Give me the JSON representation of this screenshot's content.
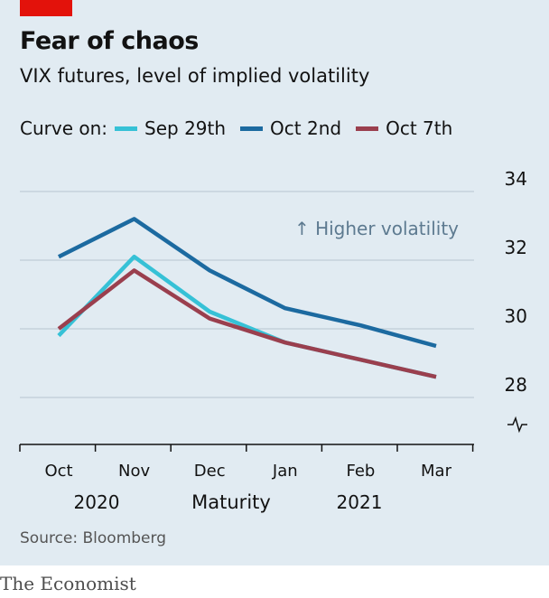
{
  "header": {
    "title": "Fear of chaos",
    "subtitle": "VIX futures, level of implied volatility"
  },
  "legend": {
    "lead": "Curve on:",
    "items": [
      {
        "label": "Sep 29th",
        "color": "#36c1d6"
      },
      {
        "label": "Oct 2nd",
        "color": "#1c6aa0"
      },
      {
        "label": "Oct 7th",
        "color": "#9a3f4e"
      }
    ]
  },
  "annotation": "↑ Higher volatility",
  "footer": {
    "source": "Source: Bloomberg",
    "brand": "The Economist"
  },
  "chart_data": {
    "type": "line",
    "categories": [
      "Oct",
      "Nov",
      "Dec",
      "Jan",
      "Feb",
      "Mar"
    ],
    "year_labels": [
      "2020",
      "2021"
    ],
    "xlabel": "Maturity",
    "ylabel": "",
    "ylim": [
      28,
      34
    ],
    "yticks": [
      28,
      30,
      32,
      34
    ],
    "axis_break": true,
    "grid": true,
    "series": [
      {
        "name": "Sep 29th",
        "color": "#36c1d6",
        "values": [
          29.8,
          32.1,
          30.5,
          29.6,
          29.1,
          28.6
        ]
      },
      {
        "name": "Oct 2nd",
        "color": "#1c6aa0",
        "values": [
          32.1,
          33.2,
          31.7,
          30.6,
          30.1,
          29.5
        ]
      },
      {
        "name": "Oct 7th",
        "color": "#9a3f4e",
        "values": [
          30.0,
          31.7,
          30.3,
          29.6,
          29.1,
          28.6
        ]
      }
    ]
  }
}
